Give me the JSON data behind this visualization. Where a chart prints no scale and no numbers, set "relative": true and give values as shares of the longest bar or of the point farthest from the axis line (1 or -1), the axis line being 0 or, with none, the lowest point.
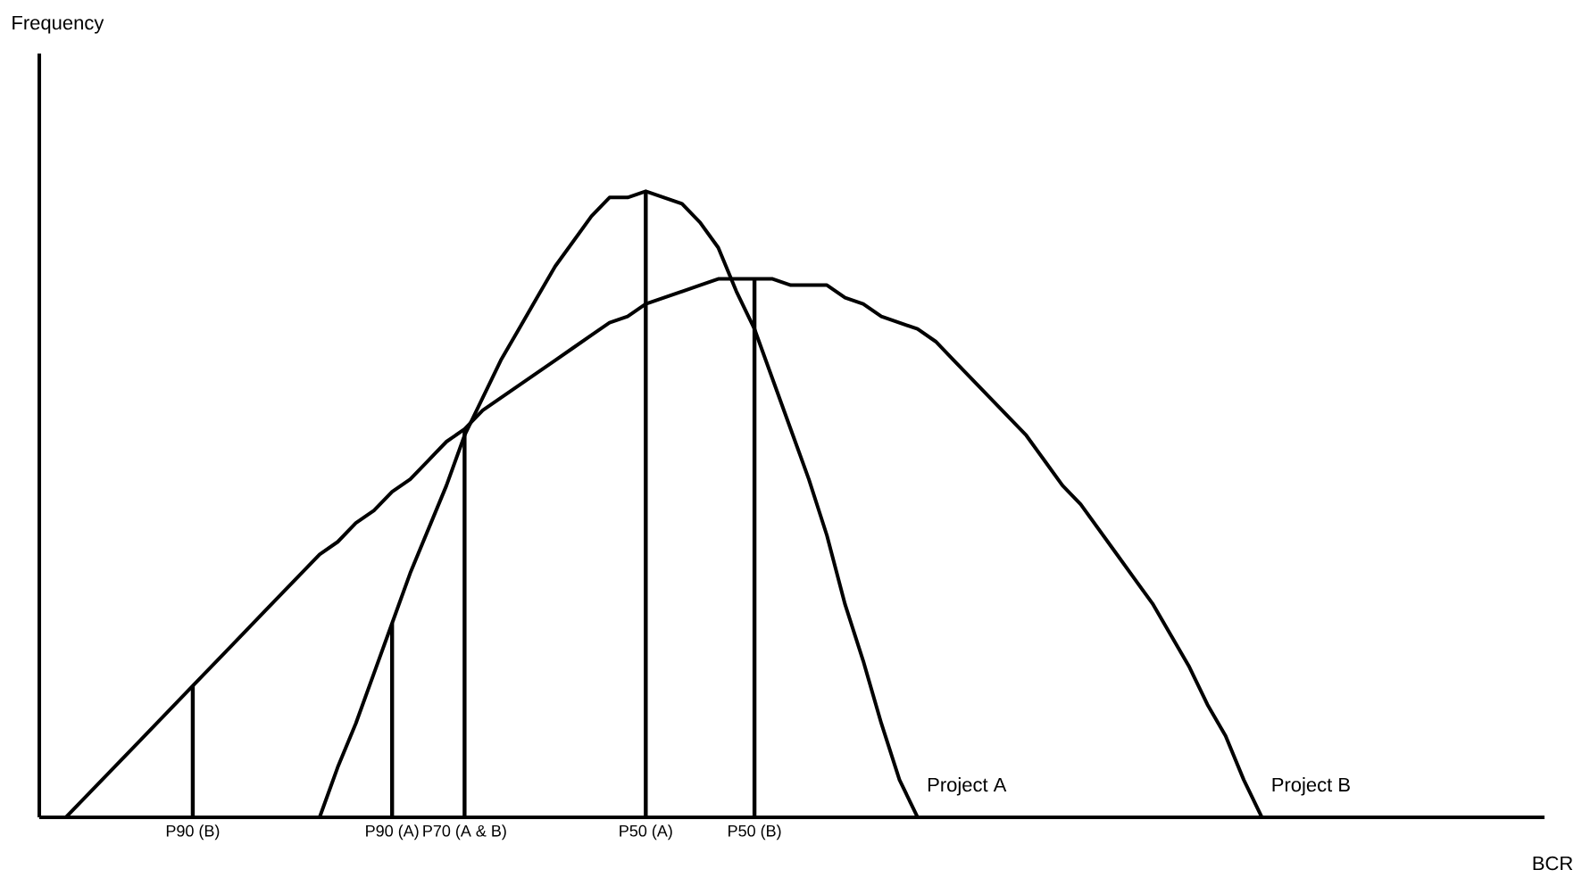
{
  "chart_data": {
    "type": "line",
    "relative": true,
    "xlabel": "BCR",
    "annotations": [
      "Frequency"
    ],
    "categories": [
      null,
      null,
      null,
      null,
      null,
      null,
      null,
      null,
      "P90 (B)",
      null,
      null,
      null,
      null,
      null,
      null,
      null,
      null,
      null,
      null,
      "P90 (A)",
      null,
      null,
      null,
      "P70 (A & B)",
      null,
      null,
      null,
      null,
      null,
      null,
      null,
      null,
      null,
      "P50 (A)",
      null,
      null,
      null,
      null,
      null,
      "P50 (B)",
      null,
      null,
      null,
      null,
      null,
      null,
      null,
      null,
      null,
      null,
      null,
      null,
      null,
      null,
      null,
      null,
      null,
      null,
      null,
      null,
      null,
      null,
      null,
      null,
      null,
      null,
      null,
      null,
      null,
      null,
      null,
      null,
      null,
      null,
      null,
      null,
      null,
      null,
      null,
      null,
      null,
      null,
      null
    ],
    "series": [
      {
        "name": "Project A",
        "color": "#000000",
        "values": [
          null,
          null,
          null,
          null,
          null,
          null,
          null,
          null,
          null,
          null,
          null,
          null,
          null,
          null,
          null,
          0,
          0.08,
          0.15,
          0.23,
          0.31,
          0.39,
          0.46,
          0.53,
          0.61,
          0.67,
          0.73,
          0.78,
          0.83,
          0.88,
          0.92,
          0.96,
          0.99,
          0.99,
          1,
          0.99,
          0.98,
          0.95,
          0.91,
          0.84,
          0.78,
          0.7,
          0.62,
          0.54,
          0.45,
          0.34,
          0.25,
          0.15,
          0.06,
          0,
          null,
          null,
          null,
          null,
          null,
          null,
          null,
          null,
          null,
          null,
          null,
          null,
          null,
          null,
          null,
          null,
          null,
          null,
          null,
          null,
          null,
          null,
          null,
          null,
          null,
          null,
          null,
          null,
          null,
          null,
          null,
          null,
          null,
          null
        ]
      },
      {
        "name": "Project B",
        "color": "#000000",
        "values": [
          null,
          0,
          0.03,
          0.06,
          0.09,
          0.12,
          0.15,
          0.18,
          0.21,
          0.24,
          0.27,
          0.3,
          0.33,
          0.36,
          0.39,
          0.42,
          0.44,
          0.47,
          0.49,
          0.52,
          0.54,
          0.57,
          0.6,
          0.62,
          0.65,
          0.67,
          0.69,
          0.71,
          0.73,
          0.75,
          0.77,
          0.79,
          0.8,
          0.82,
          0.83,
          0.84,
          0.85,
          0.86,
          0.86,
          0.86,
          0.86,
          0.85,
          0.85,
          0.85,
          0.83,
          0.82,
          0.8,
          0.79,
          0.78,
          0.76,
          0.73,
          0.7,
          0.67,
          0.64,
          0.61,
          0.57,
          0.53,
          0.5,
          0.46,
          0.42,
          0.38,
          0.34,
          0.29,
          0.24,
          0.18,
          0.13,
          0.06,
          0,
          null,
          null,
          null,
          null,
          null,
          null,
          null,
          null,
          null,
          null,
          null,
          null,
          null,
          null,
          null
        ]
      },
      {
        "type": "bar",
        "color": "#000000",
        "values": [
          null,
          null,
          null,
          null,
          null,
          null,
          null,
          null,
          0.21,
          null,
          null,
          null,
          null,
          null,
          null,
          null,
          null,
          null,
          null,
          0.31,
          null,
          null,
          null,
          0.62,
          null,
          null,
          null,
          null,
          null,
          null,
          null,
          null,
          null,
          1,
          null,
          null,
          null,
          null,
          null,
          0.86,
          null,
          null,
          null,
          null,
          null,
          null,
          null,
          null,
          null,
          null,
          null,
          null,
          null,
          null,
          null,
          null,
          null,
          null,
          null,
          null,
          null,
          null,
          null,
          null,
          null,
          null,
          null,
          null,
          null,
          null,
          null,
          null,
          null,
          null,
          null,
          null,
          null,
          null,
          null,
          null,
          null,
          null,
          null
        ]
      }
    ]
  }
}
